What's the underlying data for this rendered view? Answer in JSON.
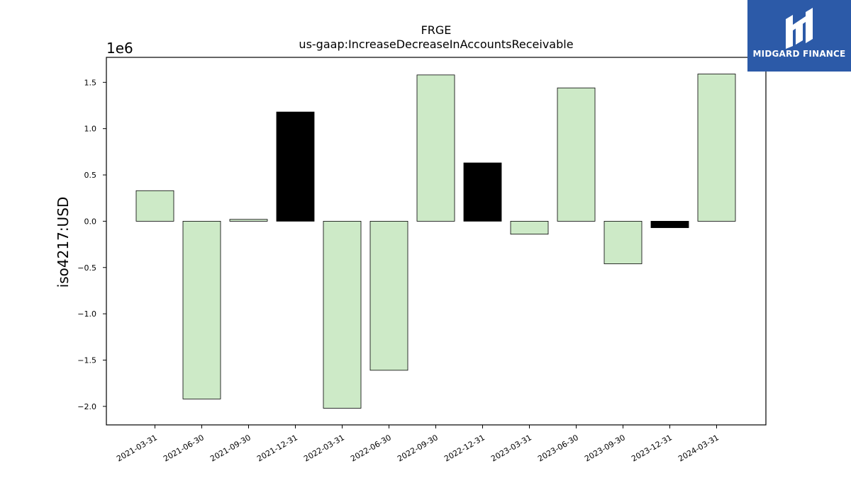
{
  "chart_data": {
    "type": "bar",
    "title": "FRGE",
    "subtitle": "us-gaap:IncreaseDecreaseInAccountsReceivable",
    "ylabel": "iso4217:USD",
    "offset_label": "1e6",
    "ylim": [
      -2.2,
      1.77
    ],
    "yticks": [
      -2.0,
      -1.5,
      -1.0,
      -0.5,
      0.0,
      0.5,
      1.0,
      1.5
    ],
    "ytick_labels": [
      "−2.0",
      "−1.5",
      "−1.0",
      "−0.5",
      "0.0",
      "0.5",
      "1.0",
      "1.5"
    ],
    "categories": [
      "2021-03-31",
      "2021-06-30",
      "2021-09-30",
      "2021-12-31",
      "2022-03-31",
      "2022-06-30",
      "2022-09-30",
      "2022-12-31",
      "2023-03-31",
      "2023-06-30",
      "2023-09-30",
      "2023-12-31",
      "2024-03-31"
    ],
    "values": [
      0.33,
      -1.92,
      0.02,
      1.18,
      -2.02,
      -1.61,
      1.58,
      0.63,
      -0.14,
      1.44,
      -0.46,
      -0.07,
      1.59
    ],
    "bar_colors": [
      "#cdeac7",
      "#cdeac7",
      "#cdeac7",
      "#000000",
      "#cdeac7",
      "#cdeac7",
      "#cdeac7",
      "#000000",
      "#cdeac7",
      "#cdeac7",
      "#cdeac7",
      "#000000",
      "#cdeac7"
    ],
    "grid": false,
    "legend": "none"
  },
  "logo": {
    "text": "MIDGARD FINANCE",
    "background": "#2c5aa8",
    "icon": "midgard-logo-icon"
  }
}
